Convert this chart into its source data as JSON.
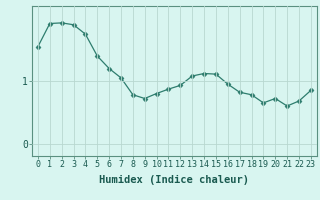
{
  "xlabel": "Humidex (Indice chaleur)",
  "x": [
    0,
    1,
    2,
    3,
    4,
    5,
    6,
    7,
    8,
    9,
    10,
    11,
    12,
    13,
    14,
    15,
    16,
    17,
    18,
    19,
    20,
    21,
    22,
    23
  ],
  "y": [
    1.55,
    1.92,
    1.93,
    1.9,
    1.75,
    1.4,
    1.2,
    1.05,
    0.78,
    0.72,
    0.8,
    0.87,
    0.93,
    1.08,
    1.12,
    1.11,
    0.95,
    0.82,
    0.78,
    0.65,
    0.72,
    0.6,
    0.68,
    0.85
  ],
  "line_color": "#2e7d6e",
  "marker": "D",
  "marker_size": 2.5,
  "bg_color": "#d8f5f0",
  "grid_color": "#b8d8d0",
  "yticks": [
    0,
    1
  ],
  "ylim": [
    -0.2,
    2.2
  ],
  "xlim": [
    -0.5,
    23.5
  ],
  "tick_fontsize": 6,
  "label_fontsize": 7.5,
  "spine_color": "#5a9080",
  "text_color": "#1a5a50"
}
